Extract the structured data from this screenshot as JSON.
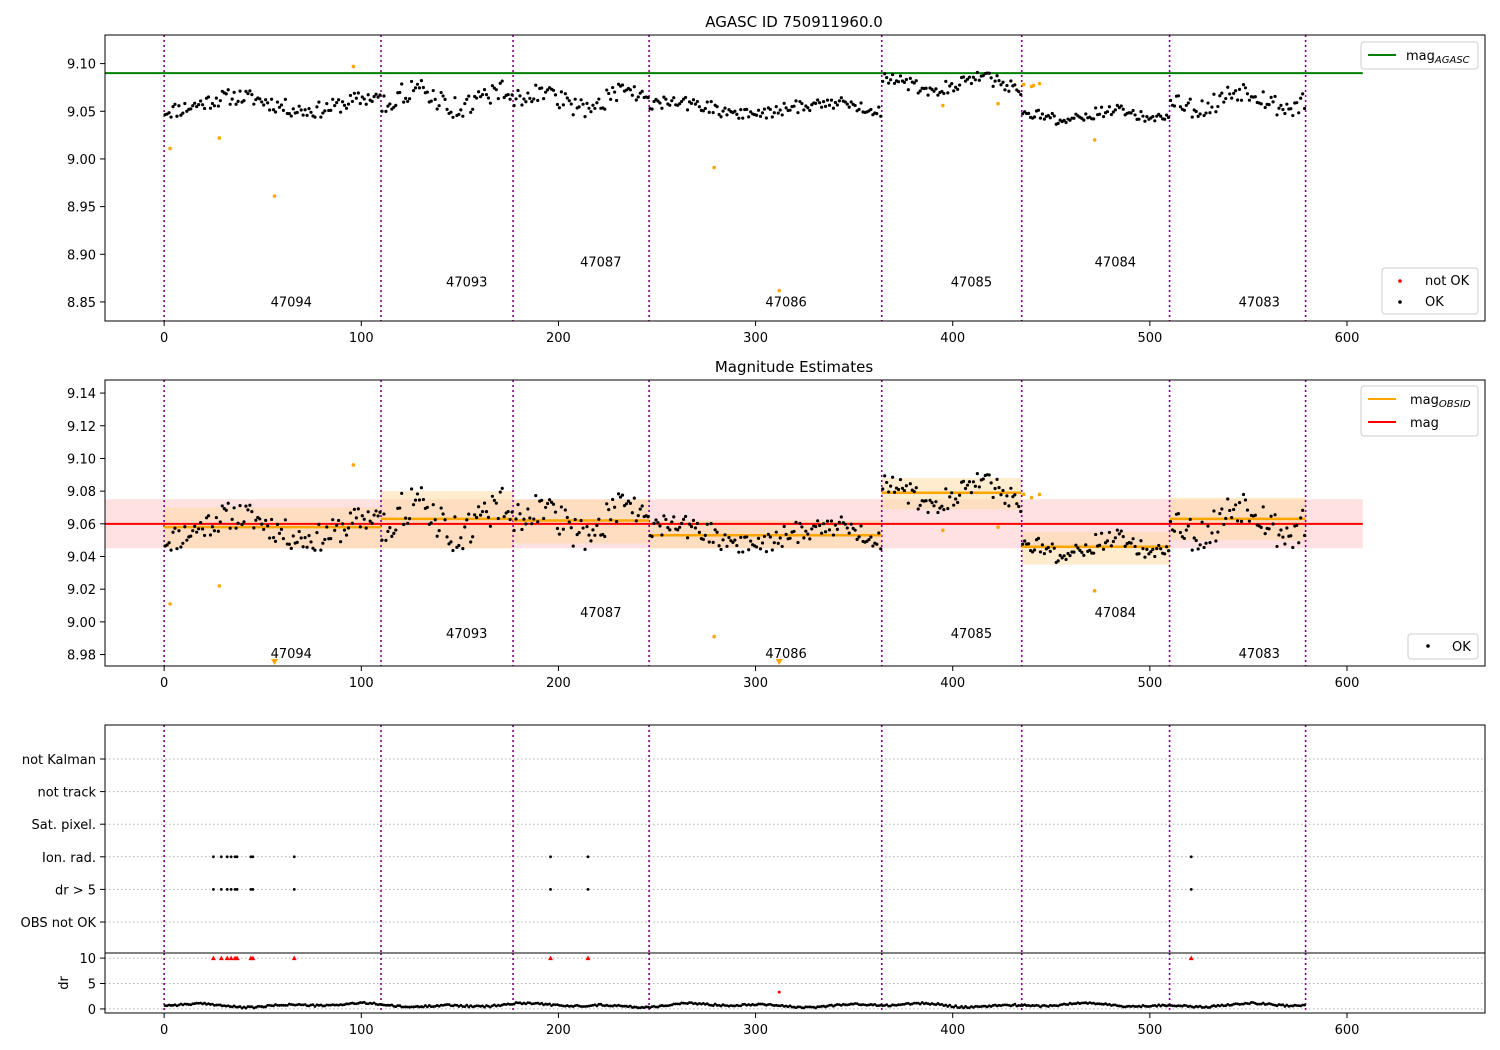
{
  "chart_data": [
    {
      "type": "scatter",
      "title": "AGASC ID 750911960.0",
      "xlim": [
        -30,
        670
      ],
      "ylim": [
        8.83,
        9.13
      ],
      "xticks": [
        "0",
        "100",
        "200",
        "300",
        "400",
        "500",
        "600"
      ],
      "yticks": [
        "8.85",
        "8.90",
        "8.95",
        "9.00",
        "9.05",
        "9.10"
      ],
      "obsid_boundaries": [
        0,
        110,
        177,
        246,
        364,
        435,
        510,
        579
      ],
      "obsids": [
        {
          "label": "47094",
          "x": 54,
          "y": 8.845
        },
        {
          "label": "47093",
          "x": 143,
          "y": 8.866
        },
        {
          "label": "47087",
          "x": 211,
          "y": 8.887
        },
        {
          "label": "47086",
          "x": 305,
          "y": 8.845
        },
        {
          "label": "47085",
          "x": 399,
          "y": 8.866
        },
        {
          "label": "47084",
          "x": 472,
          "y": 8.887
        },
        {
          "label": "47083",
          "x": 545,
          "y": 8.845
        }
      ],
      "mag_agasc": 9.09,
      "mag_agasc_range": [
        -30,
        608
      ],
      "outliers": [
        {
          "x": 3,
          "y": 9.011
        },
        {
          "x": 28,
          "y": 9.022
        },
        {
          "x": 56,
          "y": 8.961
        },
        {
          "x": 96,
          "y": 9.097
        },
        {
          "x": 279,
          "y": 8.991
        },
        {
          "x": 312,
          "y": 8.862
        },
        {
          "x": 395,
          "y": 9.056
        },
        {
          "x": 423,
          "y": 9.058
        },
        {
          "x": 436,
          "y": 9.078
        },
        {
          "x": 440,
          "y": 9.076
        },
        {
          "x": 441,
          "y": 9.077
        },
        {
          "x": 444,
          "y": 9.079
        },
        {
          "x": 472,
          "y": 9.02
        }
      ],
      "segments": [
        {
          "start": 0,
          "end": 110,
          "mean": 9.058,
          "amp": 0.012
        },
        {
          "start": 110,
          "end": 177,
          "mean": 9.063,
          "amp": 0.016
        },
        {
          "start": 177,
          "end": 246,
          "mean": 9.062,
          "amp": 0.014
        },
        {
          "start": 246,
          "end": 364,
          "mean": 9.053,
          "amp": 0.01
        },
        {
          "start": 364,
          "end": 435,
          "mean": 9.079,
          "amp": 0.01
        },
        {
          "start": 435,
          "end": 510,
          "mean": 9.046,
          "amp": 0.008
        },
        {
          "start": 510,
          "end": 579,
          "mean": 9.063,
          "amp": 0.016
        }
      ],
      "legend_upper": [
        {
          "name": "mag",
          "sub": "AGASC",
          "color": "#008000"
        }
      ],
      "legend_lower": [
        {
          "name": "not OK",
          "color": "#ff0000"
        },
        {
          "name": "OK",
          "color": "#000000"
        }
      ],
      "legend_upper_position": "upper right",
      "legend_lower_position": "lower right",
      "colors": {
        "ok": "#000000",
        "outlier": "#ffa500",
        "agasc_line": "#008000",
        "obsid_line": "#800080"
      }
    },
    {
      "type": "scatter",
      "title": "Magnitude Estimates",
      "xlim": [
        -30,
        670
      ],
      "ylim": [
        8.973,
        9.148
      ],
      "xticks": [
        "0",
        "100",
        "200",
        "300",
        "400",
        "500",
        "600"
      ],
      "yticks": [
        "8.98",
        "9.00",
        "9.02",
        "9.04",
        "9.06",
        "9.08",
        "9.10",
        "9.12",
        "9.14"
      ],
      "obsid_boundaries": [
        0,
        110,
        177,
        246,
        364,
        435,
        510,
        579
      ],
      "obsids": [
        {
          "label": "47094",
          "x": 54,
          "y": 8.978
        },
        {
          "label": "47093",
          "x": 143,
          "y": 8.99
        },
        {
          "label": "47087",
          "x": 211,
          "y": 9.003
        },
        {
          "label": "47086",
          "x": 305,
          "y": 8.978
        },
        {
          "label": "47085",
          "x": 399,
          "y": 8.99
        },
        {
          "label": "47084",
          "x": 472,
          "y": 9.003
        },
        {
          "label": "47083",
          "x": 545,
          "y": 8.978
        }
      ],
      "mag": 9.06,
      "mag_band": [
        9.045,
        9.075
      ],
      "mag_range": [
        -30,
        608
      ],
      "mag_obsid": [
        {
          "start": 0,
          "end": 110,
          "mean": 9.058,
          "band": [
            9.045,
            9.07
          ]
        },
        {
          "start": 110,
          "end": 177,
          "mean": 9.063,
          "band": [
            9.045,
            9.08
          ]
        },
        {
          "start": 177,
          "end": 246,
          "mean": 9.062,
          "band": [
            9.048,
            9.075
          ]
        },
        {
          "start": 246,
          "end": 364,
          "mean": 9.053,
          "band": [
            9.045,
            9.062
          ]
        },
        {
          "start": 364,
          "end": 435,
          "mean": 9.079,
          "band": [
            9.069,
            9.088
          ]
        },
        {
          "start": 435,
          "end": 510,
          "mean": 9.046,
          "band": [
            9.035,
            9.055
          ]
        },
        {
          "start": 510,
          "end": 579,
          "mean": 9.063,
          "band": [
            9.05,
            9.076
          ]
        }
      ],
      "outliers": [
        {
          "x": 3,
          "y": 9.011
        },
        {
          "x": 28,
          "y": 9.022
        },
        {
          "x": 96,
          "y": 9.096
        },
        {
          "x": 279,
          "y": 8.991
        },
        {
          "x": 395,
          "y": 9.056
        },
        {
          "x": 423,
          "y": 9.058
        },
        {
          "x": 436,
          "y": 9.078
        },
        {
          "x": 440,
          "y": 9.076
        },
        {
          "x": 444,
          "y": 9.078
        },
        {
          "x": 472,
          "y": 9.019
        }
      ],
      "offscale_markers": [
        {
          "x": 56
        },
        {
          "x": 312
        }
      ],
      "legend_upper": [
        {
          "name": "mag",
          "sub": "OBSID",
          "color": "#ffa500"
        },
        {
          "name": "mag",
          "sub": "",
          "color": "#ff0000"
        }
      ],
      "legend_lower": [
        {
          "name": "OK",
          "color": "#000000"
        }
      ],
      "legend_upper_position": "upper right",
      "legend_lower_position": "lower right"
    },
    {
      "type": "scatter",
      "title": "",
      "categories": [
        "not Kalman",
        "not track",
        "Sat. pixel.",
        "Ion. rad.",
        "dr > 5",
        "OBS not OK"
      ],
      "xlim": [
        -30,
        670
      ],
      "flag_events": {
        "ion_rad": [
          25,
          29,
          32,
          34,
          36,
          37,
          44,
          45,
          66,
          196,
          215,
          521
        ],
        "dr_gt_5": [
          25,
          29,
          32,
          34,
          36,
          37,
          44,
          45,
          66,
          196,
          215,
          521
        ]
      },
      "obsid_boundaries": [
        0,
        110,
        177,
        246,
        364,
        435,
        510,
        579
      ]
    },
    {
      "type": "scatter",
      "title": "",
      "ylabel": "dr",
      "xlim": [
        -30,
        670
      ],
      "ylim": [
        -0.8,
        11
      ],
      "xticks": [
        "0",
        "100",
        "200",
        "300",
        "400",
        "500",
        "600"
      ],
      "yticks": [
        "0",
        "5",
        "10"
      ],
      "clipped_points": [
        25,
        29,
        32,
        34,
        36,
        37,
        44,
        45,
        66,
        196,
        215,
        521
      ],
      "clipped_value": 10,
      "extra_points": [
        {
          "x": 312,
          "y": 3.3
        }
      ],
      "obsid_boundaries": [
        0,
        110,
        177,
        246,
        364,
        435,
        510,
        579
      ]
    }
  ]
}
